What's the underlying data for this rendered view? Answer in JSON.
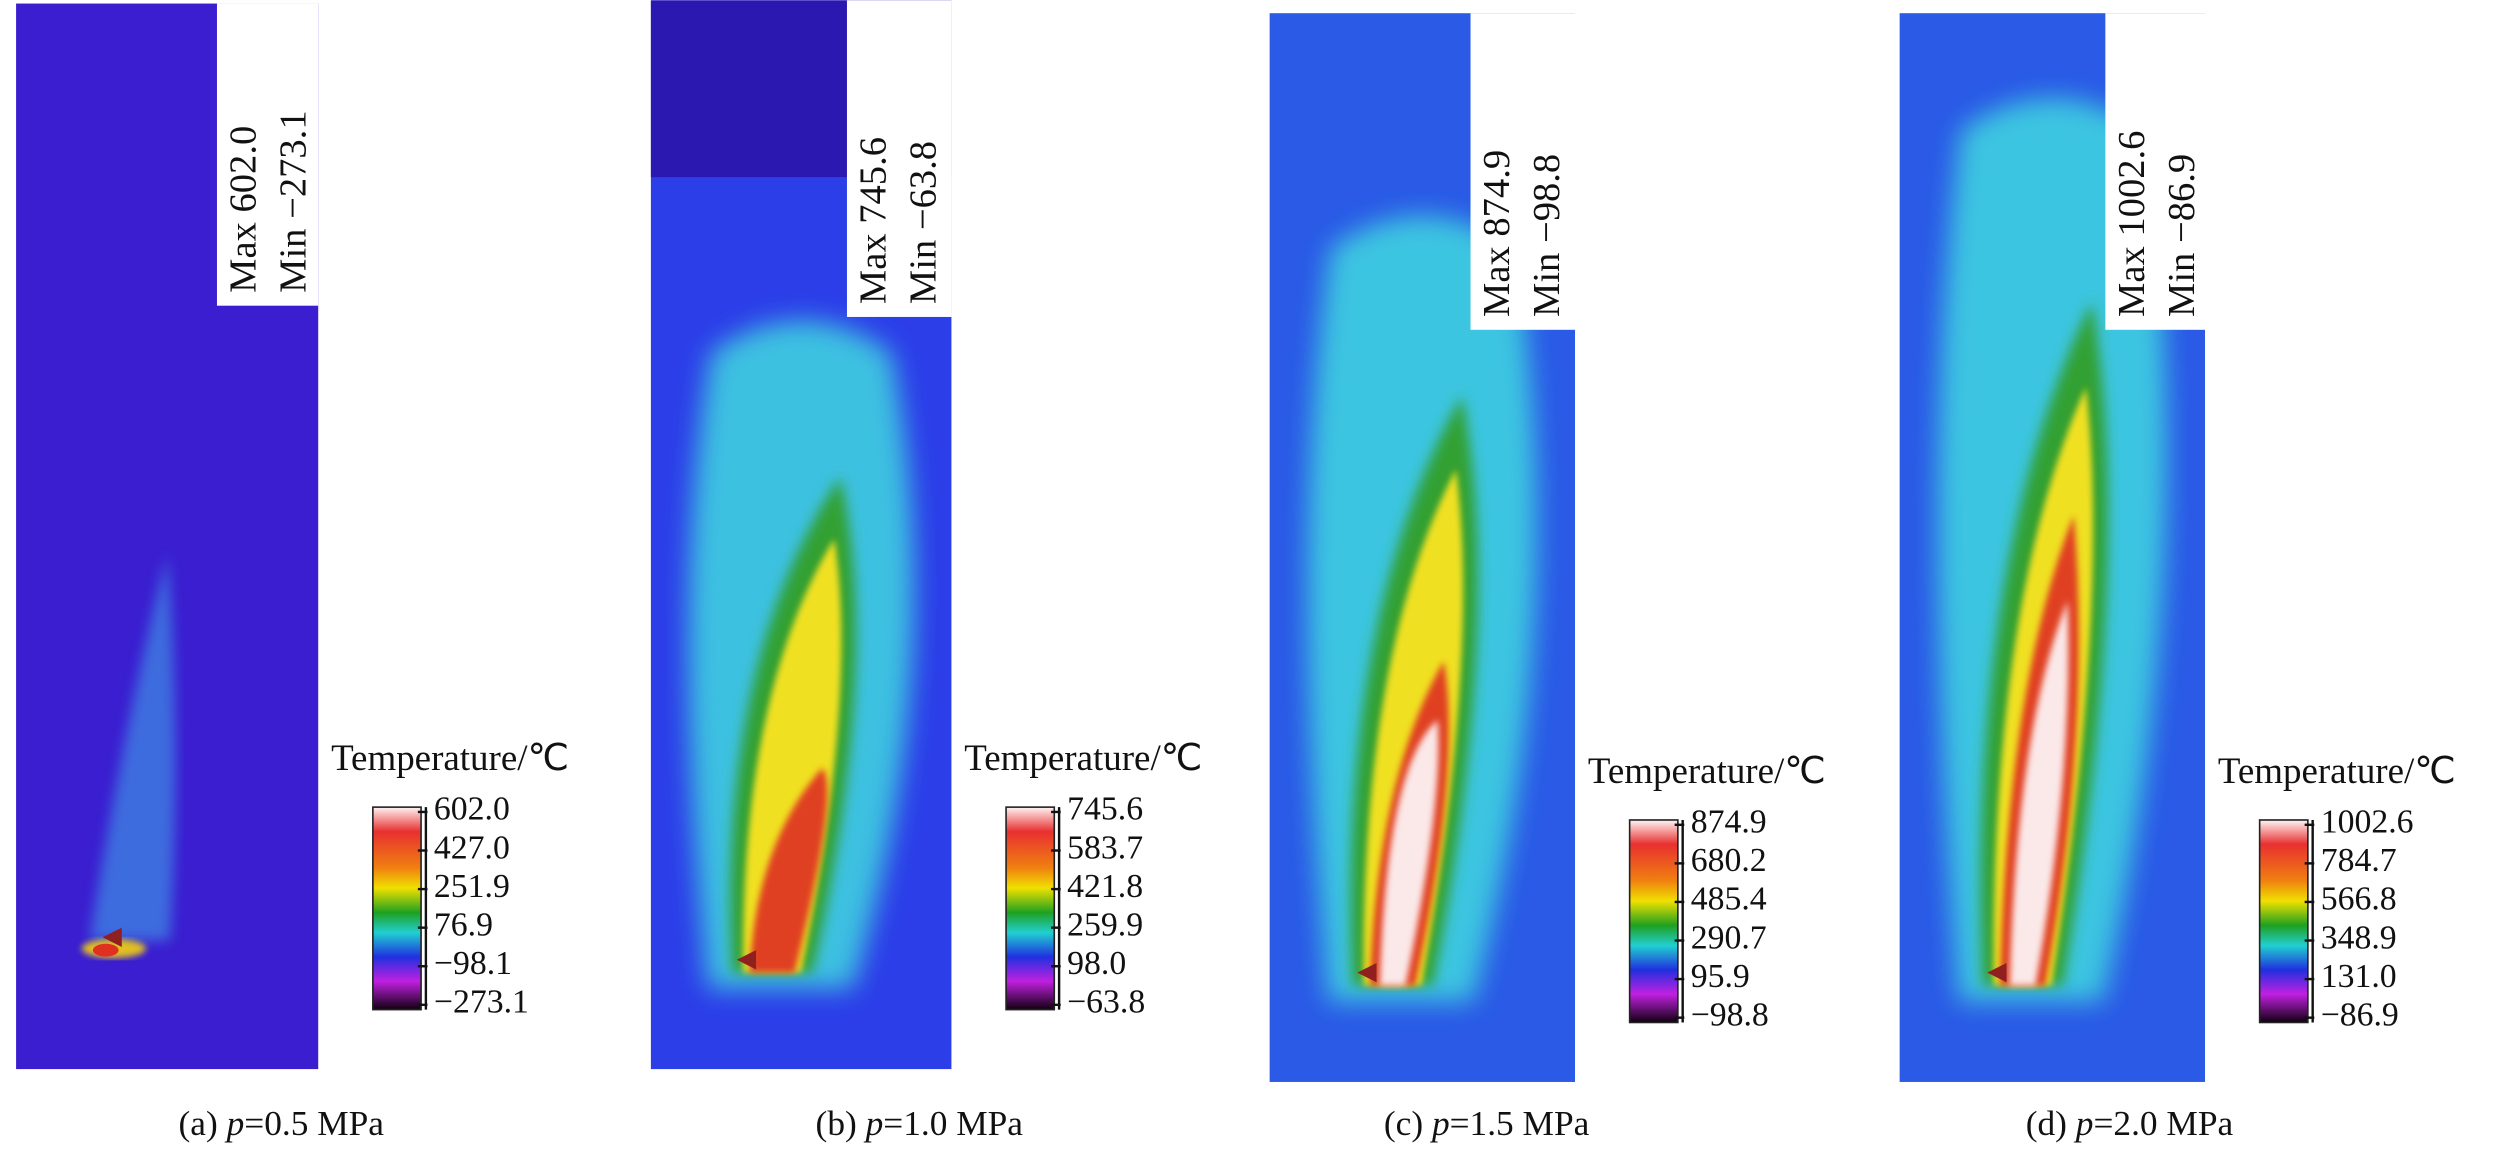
{
  "panels": [
    {
      "max_label": "Max 602.0",
      "min_label": "Min −273.1",
      "legend_title": "Temperature/℃",
      "scale_labels": [
        "602.0",
        "427.0",
        "251.9",
        "76.9",
        "−98.1",
        "−273.1"
      ],
      "caption": {
        "prefix": "(a) ",
        "var": "p",
        "suffix": "=0.5 MPa"
      }
    },
    {
      "max_label": "Max 745.6",
      "min_label": "Min −63.8",
      "legend_title": "Temperature/℃",
      "scale_labels": [
        "745.6",
        "583.7",
        "421.8",
        "259.9",
        "98.0",
        "−63.8"
      ],
      "caption": {
        "prefix": "(b) ",
        "var": "p",
        "suffix": "=1.0 MPa"
      }
    },
    {
      "max_label": "Max 874.9",
      "min_label": "Min −98.8",
      "legend_title": "Temperature/℃",
      "scale_labels": [
        "874.9",
        "680.2",
        "485.4",
        "290.7",
        "95.9",
        "−98.8"
      ],
      "caption": {
        "prefix": "(c) ",
        "var": "p",
        "suffix": "=1.5 MPa"
      }
    },
    {
      "max_label": "Max 1002.6",
      "min_label": "Min −86.9",
      "legend_title": "Temperature/℃",
      "scale_labels": [
        "1002.6",
        "784.7",
        "566.8",
        "348.9",
        "131.0",
        "−86.9"
      ],
      "caption": {
        "prefix": "(d) ",
        "var": "p",
        "suffix": "=2.0 MPa"
      }
    }
  ]
}
